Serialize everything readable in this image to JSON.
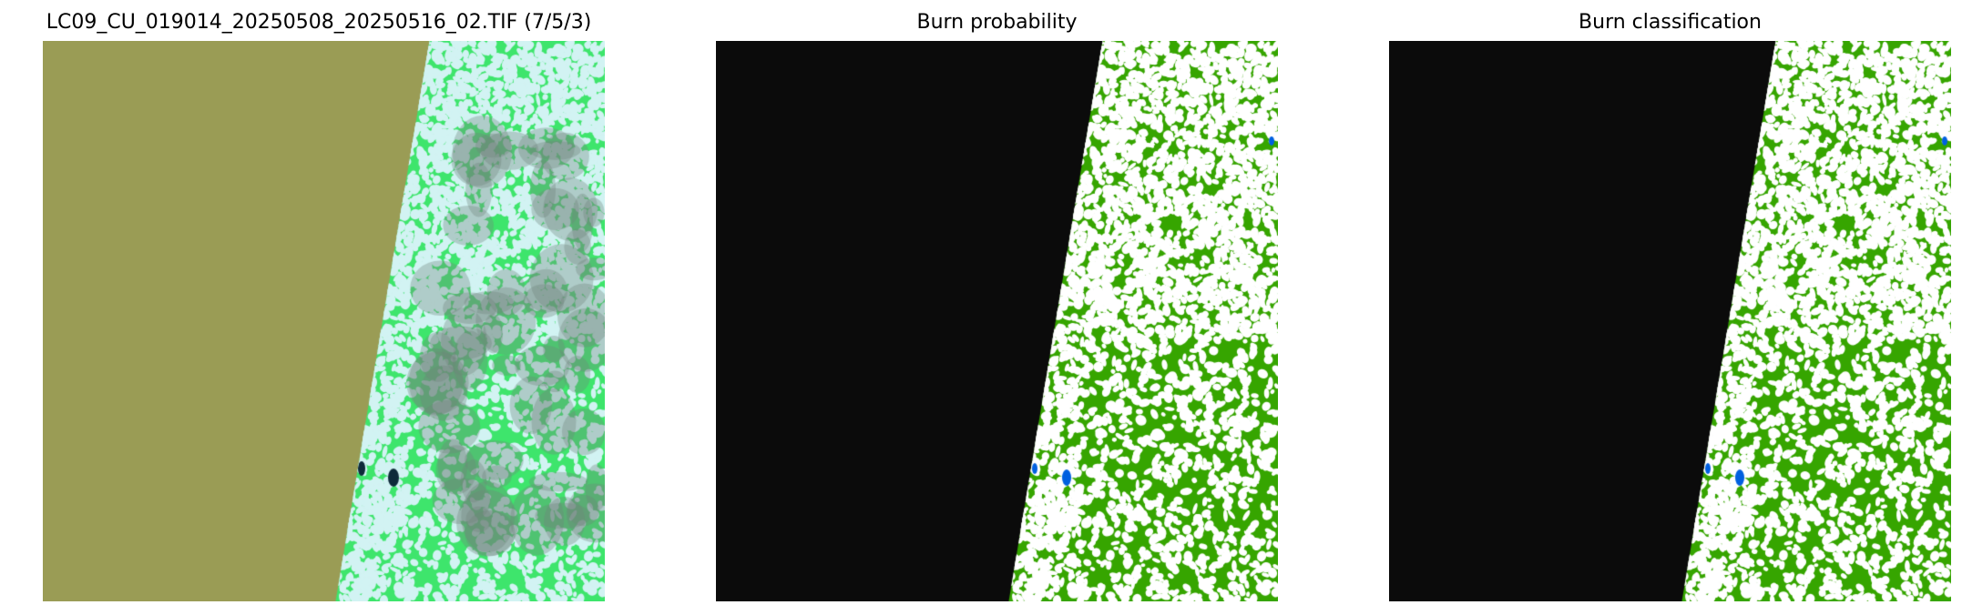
{
  "figure": {
    "panels": [
      {
        "title": "LC09_CU_019014_20250508_20250516_02.TIF (7/5/3)",
        "kind": "rgb-composite"
      },
      {
        "title": "Burn probability",
        "kind": "probability-map"
      },
      {
        "title": "Burn classification",
        "kind": "classification-map"
      }
    ]
  },
  "colors": {
    "nodata_rgb": "#9a9c55",
    "nodata_map": "#0b0b0b",
    "burn_green": "#36a500",
    "background_white": "#ffffff",
    "water_blue": "#0060e0",
    "landsat_green": "#3ee56c",
    "landsat_cloud": "#d2f3f3",
    "landsat_gray": "#6f847c"
  }
}
